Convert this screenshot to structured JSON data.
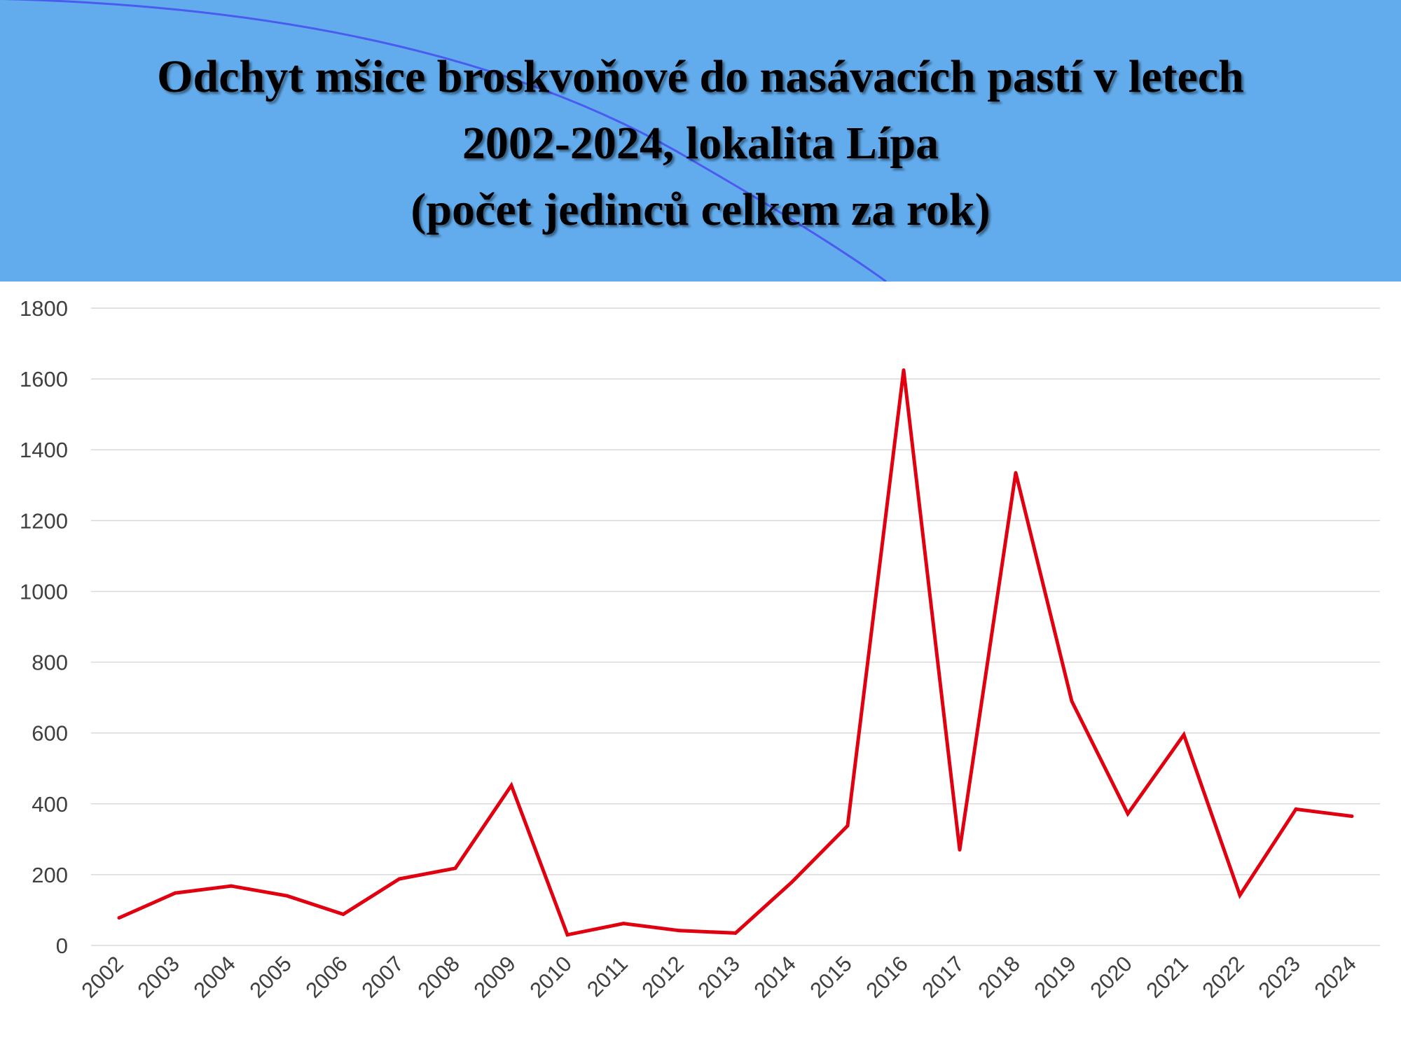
{
  "title": {
    "line1": "Odchyt mšice broskvoňové do nasávacích pastí v letech",
    "line2": "2002-2024, lokalita Lípa",
    "line3": "(počet jedinců celkem za rok)"
  },
  "colors": {
    "header_background": "#62aced",
    "series_line": "#e00010",
    "gridline": "#d9d9d9",
    "tick_text": "#404040"
  },
  "chart_data": {
    "type": "line",
    "title": "Odchyt mšice broskvoňové do nasávacích pastí v letech 2002-2024, lokalita Lípa (počet jedinců celkem za rok)",
    "xlabel": "",
    "ylabel": "",
    "ylim": [
      0,
      1800
    ],
    "yticks": [
      0,
      200,
      400,
      600,
      800,
      1000,
      1200,
      1400,
      1600,
      1800
    ],
    "grid": true,
    "legend": "none",
    "categories": [
      "2002",
      "2003",
      "2004",
      "2005",
      "2006",
      "2007",
      "2008",
      "2009",
      "2010",
      "2011",
      "2012",
      "2013",
      "2014",
      "2015",
      "2016",
      "2017",
      "2018",
      "2019",
      "2020",
      "2021",
      "2022",
      "2023",
      "2024"
    ],
    "series": [
      {
        "values": [
          78,
          148,
          168,
          140,
          88,
          188,
          218,
          452,
          30,
          62,
          42,
          35,
          178,
          338,
          1625,
          270,
          1335,
          690,
          372,
          595,
          142,
          385,
          365
        ]
      }
    ]
  }
}
